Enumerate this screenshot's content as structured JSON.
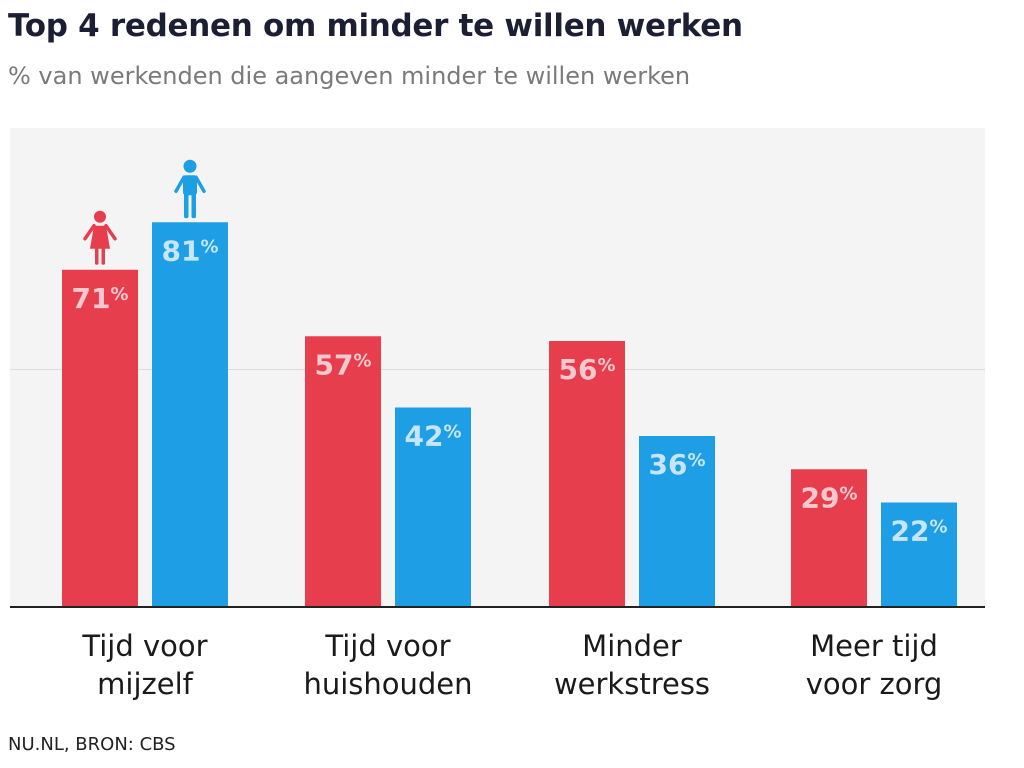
{
  "chart_data": {
    "type": "bar",
    "title": "Top 4 redenen om minder te willen werken",
    "subtitle": "% van werkenden die aangeven minder te willen werken",
    "categories": [
      [
        "Tijd voor",
        "mijzelf"
      ],
      [
        "Tijd voor",
        "huishouden"
      ],
      [
        "Minder",
        "werkstress"
      ],
      [
        "Meer tijd",
        "voor zorg"
      ]
    ],
    "series": [
      {
        "icon": "female-icon",
        "color": "#e63e4d",
        "label_color": "#f7c8cd",
        "values": [
          71,
          57,
          56,
          29
        ]
      },
      {
        "icon": "male-icon",
        "color": "#1e9fe5",
        "label_color": "#c6e5f8",
        "values": [
          81,
          42,
          36,
          22
        ]
      }
    ],
    "ylim": [
      0,
      100
    ],
    "gridlines": [
      50
    ],
    "grid": true,
    "value_suffix": "%",
    "background": "#f4f4f4"
  },
  "source": "NU.NL, BRON: CBS"
}
